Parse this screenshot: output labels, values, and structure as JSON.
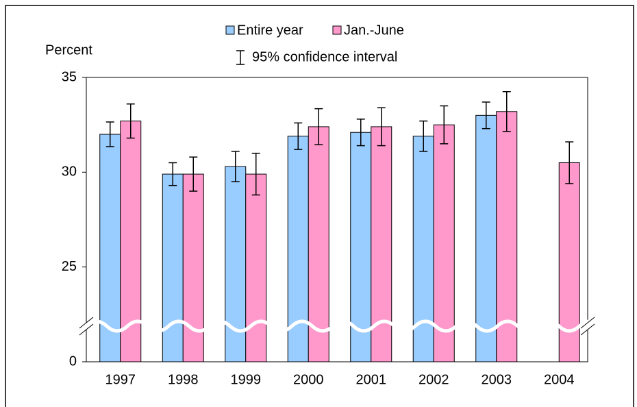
{
  "chart_data": {
    "type": "bar",
    "y_label": "Percent",
    "ci_legend": "95% confidence interval",
    "categories": [
      "1997",
      "1998",
      "1999",
      "2000",
      "2001",
      "2002",
      "2003",
      "2004"
    ],
    "series": [
      {
        "name": "Entire year",
        "color": "#99ccff",
        "values": [
          32.0,
          29.9,
          30.3,
          31.9,
          32.1,
          31.9,
          33.0,
          null
        ],
        "errors": [
          0.65,
          0.6,
          0.8,
          0.7,
          0.7,
          0.8,
          0.7,
          null
        ]
      },
      {
        "name": "Jan.-June",
        "color": "#ff99cc",
        "values": [
          32.7,
          29.9,
          29.9,
          32.4,
          32.4,
          32.5,
          33.2,
          30.5
        ],
        "errors": [
          0.9,
          0.9,
          1.1,
          0.95,
          1.0,
          1.0,
          1.05,
          1.1
        ]
      }
    ],
    "ylim": [
      0,
      35
    ],
    "axis_break": [
      0,
      20
    ],
    "yticks": [
      0,
      25,
      30,
      35
    ]
  }
}
